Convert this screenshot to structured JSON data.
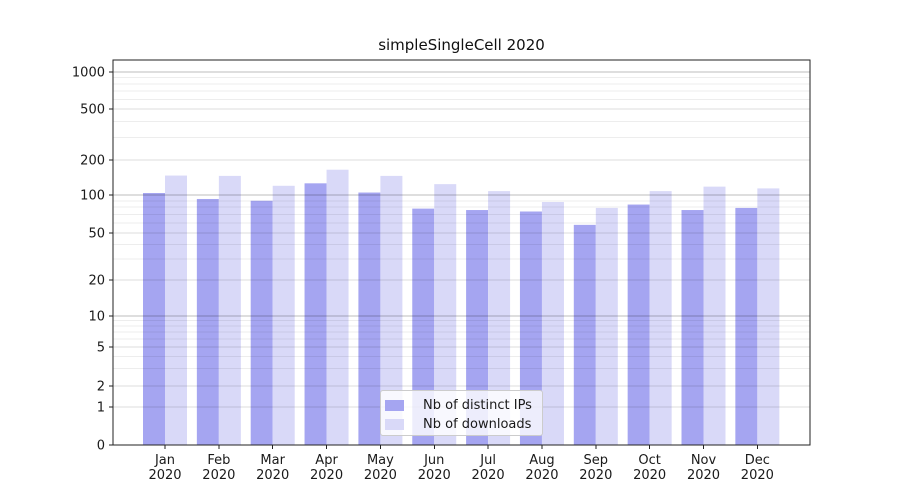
{
  "title": "simpleSingleCell 2020",
  "chart_data": {
    "type": "bar",
    "categories": [
      "Jan",
      "Feb",
      "Mar",
      "Apr",
      "May",
      "Jun",
      "Jul",
      "Aug",
      "Sep",
      "Oct",
      "Nov",
      "Dec"
    ],
    "year_label": "2020",
    "series": [
      {
        "name": "Nb of distinct IPs",
        "color": "#a5a5f1",
        "values": [
          104,
          93,
          90,
          126,
          105,
          78,
          76,
          74,
          58,
          84,
          76,
          79
        ]
      },
      {
        "name": "Nb of downloads",
        "color": "#d9d9f8",
        "values": [
          147,
          146,
          120,
          165,
          146,
          124,
          108,
          88,
          79,
          108,
          118,
          114
        ]
      }
    ],
    "y_ticks": [
      0,
      1,
      2,
      5,
      10,
      20,
      50,
      100,
      200,
      500,
      1000
    ],
    "ylim": [
      0,
      1000
    ],
    "y_scale": "symlog",
    "grid": true,
    "legend_position": "lower center"
  }
}
